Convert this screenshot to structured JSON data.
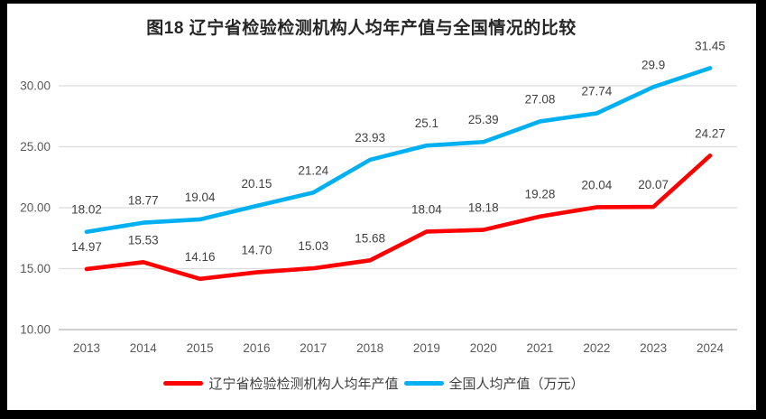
{
  "title": "图18 辽宁省检验检测机构人均年产值与全国情况的比较",
  "chart_data": {
    "type": "line",
    "categories": [
      "2013",
      "2014",
      "2015",
      "2016",
      "2017",
      "2018",
      "2019",
      "2020",
      "2021",
      "2022",
      "2023",
      "2024"
    ],
    "series": [
      {
        "name": "辽宁省检验检测机构人均年产值",
        "color": "#FF0000",
        "values": [
          14.97,
          15.53,
          14.16,
          14.7,
          15.03,
          15.68,
          18.04,
          18.18,
          19.28,
          20.04,
          20.07,
          24.27
        ],
        "labels": [
          "14.97",
          "15.53",
          "14.16",
          "14.70",
          "15.03",
          "15.68",
          "18.04",
          "18.18",
          "19.28",
          "20.04",
          "20.07",
          "24.27"
        ]
      },
      {
        "name": "全国人均产值（万元）",
        "color": "#00B0F0",
        "values": [
          18.02,
          18.77,
          19.04,
          20.15,
          21.24,
          23.93,
          25.1,
          25.39,
          27.08,
          27.74,
          29.9,
          31.45
        ],
        "labels": [
          "18.02",
          "18.77",
          "19.04",
          "20.15",
          "21.24",
          "23.93",
          "25.1",
          "25.39",
          "27.08",
          "27.74",
          "29.9",
          "31.45"
        ]
      }
    ],
    "y_axis": {
      "min": 10,
      "max": 32.5,
      "tick_step": 5,
      "tick_values": [
        10,
        15,
        20,
        25,
        30
      ],
      "tick_labels": [
        "10.00",
        "15.00",
        "20.00",
        "25.00",
        "30.00"
      ],
      "grid": true
    },
    "legend_position": "bottom",
    "style": {
      "grid_color": "#DCDCDC",
      "axis_line_color": "#BFBFBF",
      "data_label_color": "#404040",
      "tick_label_color": "#595959",
      "frame_color": "#000000"
    }
  }
}
